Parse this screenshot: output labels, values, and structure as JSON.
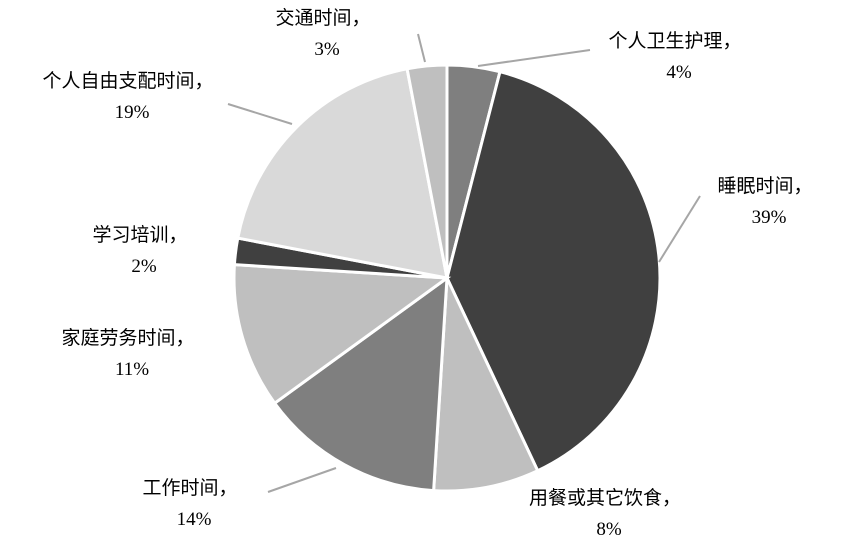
{
  "chart_data": {
    "type": "pie",
    "start": "12 o'clock, clockwise",
    "slices": [
      {
        "label": "个人卫生护理，",
        "value": 4,
        "pct_label": "4%",
        "color": "#7f7f7f"
      },
      {
        "label": "睡眠时间，",
        "value": 39,
        "pct_label": "39%",
        "color": "#404040"
      },
      {
        "label": "用餐或其它饮食，",
        "value": 8,
        "pct_label": "8%",
        "color": "#bfbfbf"
      },
      {
        "label": "工作时间，",
        "value": 14,
        "pct_label": "14%",
        "color": "#7f7f7f"
      },
      {
        "label": "家庭劳务时间，",
        "value": 11,
        "pct_label": "11%",
        "color": "#bfbfbf"
      },
      {
        "label": "学习培训，",
        "value": 2,
        "pct_label": "2%",
        "color": "#404040"
      },
      {
        "label": "个人自由支配时间，",
        "value": 19,
        "pct_label": "19%",
        "color": "#d9d9d9"
      },
      {
        "label": "交通时间，",
        "value": 3,
        "pct_label": "3%",
        "color": "#bfbfbf"
      }
    ],
    "leader_line_color": "#a6a6a6"
  }
}
